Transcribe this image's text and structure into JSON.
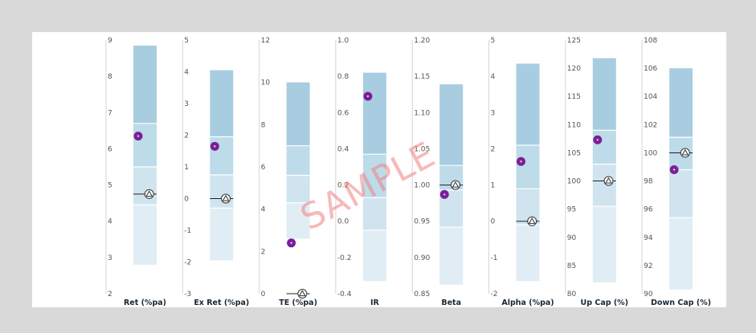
{
  "watermark": "SAMPLE",
  "colors": {
    "band_top": "#a9cde0",
    "band_upper": "#bddbe9",
    "band_lower": "#cfe4ef",
    "band_bottom": "#e0edf4",
    "divider": "#ffffff",
    "dot": "#7b1f98",
    "benchmark_line": "#222222",
    "axis": "#d5d5d5"
  },
  "chart_data": [
    {
      "type": "floating-bar",
      "xlabel": "Ret (%pa)",
      "ylim": [
        2,
        9
      ],
      "ticks": [
        "2",
        "3",
        "4",
        "5",
        "6",
        "7",
        "8",
        "9"
      ],
      "band_edges": [
        2.8,
        4.45,
        5.5,
        6.7,
        8.85
      ],
      "fund": 6.35,
      "benchmark": 4.75
    },
    {
      "type": "floating-bar",
      "xlabel": "Ex Ret (%pa)",
      "ylim": [
        -3,
        5
      ],
      "ticks": [
        "-3",
        "-2",
        "-1",
        "0",
        "1",
        "2",
        "3",
        "4",
        "5"
      ],
      "band_edges": [
        -1.95,
        -0.3,
        0.75,
        1.95,
        4.05
      ],
      "fund": 1.65,
      "benchmark": 0.0
    },
    {
      "type": "floating-bar",
      "xlabel": "TE (%pa)",
      "ylim": [
        0,
        12
      ],
      "ticks": [
        "0",
        "2",
        "4",
        "6",
        "8",
        "10",
        "12"
      ],
      "band_edges": [
        2.6,
        4.3,
        5.6,
        7.0,
        10.0
      ],
      "fund": 2.4,
      "benchmark": 0.0
    },
    {
      "type": "floating-bar",
      "xlabel": "IR",
      "ylim": [
        -0.4,
        1.0
      ],
      "ticks": [
        "-0.4",
        "-0.2",
        "0.0",
        "0.2",
        "0.4",
        "0.6",
        "0.8",
        "1.0"
      ],
      "band_edges": [
        -0.33,
        -0.05,
        0.13,
        0.37,
        0.82
      ],
      "fund": 0.69,
      "benchmark": null
    },
    {
      "type": "floating-bar",
      "xlabel": "Beta",
      "ylim": [
        0.85,
        1.2
      ],
      "ticks": [
        "0.85",
        "0.90",
        "0.95",
        "1.00",
        "1.05",
        "1.10",
        "1.15",
        "1.20"
      ],
      "band_edges": [
        0.8625,
        0.942,
        0.993,
        1.027,
        1.139
      ],
      "fund": 0.987,
      "benchmark": 1.0
    },
    {
      "type": "floating-bar",
      "xlabel": "Alpha (%pa)",
      "ylim": [
        -2,
        5
      ],
      "ticks": [
        "-2",
        "-1",
        "0",
        "1",
        "2",
        "3",
        "4",
        "5"
      ],
      "band_edges": [
        -1.65,
        -0.1,
        0.9,
        2.1,
        4.35
      ],
      "fund": 1.65,
      "benchmark": 0.0
    },
    {
      "type": "floating-bar",
      "xlabel": "Up Cap (%)",
      "ylim": [
        80,
        125
      ],
      "ticks": [
        "80",
        "85",
        "90",
        "95",
        "100",
        "105",
        "110",
        "115",
        "120",
        "125"
      ],
      "band_edges": [
        82.0,
        95.5,
        103.0,
        109.0,
        121.8
      ],
      "fund": 107.3,
      "benchmark": 100.0
    },
    {
      "type": "floating-bar",
      "xlabel": "Down Cap (%)",
      "ylim": [
        90,
        108
      ],
      "ticks": [
        "90",
        "92",
        "94",
        "96",
        "98",
        "100",
        "102",
        "104",
        "106",
        "108"
      ],
      "band_edges": [
        90.3,
        95.4,
        98.8,
        101.1,
        106.0
      ],
      "fund": 98.8,
      "benchmark": 100.0
    }
  ]
}
